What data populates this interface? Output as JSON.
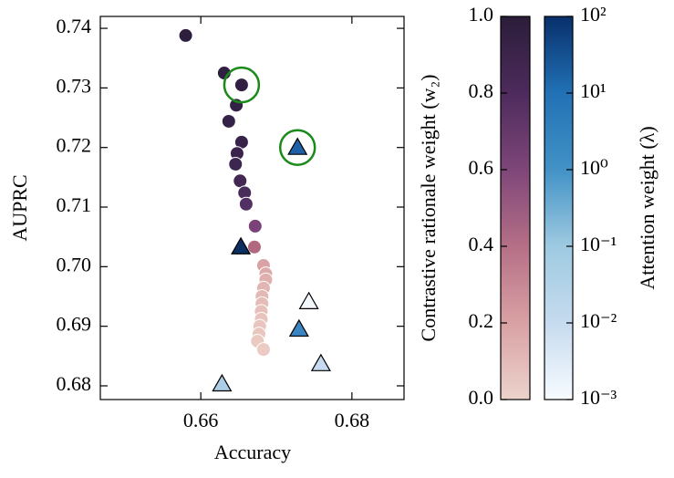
{
  "chart_data": {
    "type": "scatter",
    "xlabel": "Accuracy",
    "ylabel": "AUPRC",
    "xlim": [
      0.6467,
      0.6869
    ],
    "ylim": [
      0.6777,
      0.742
    ],
    "xticks": [
      0.66,
      0.68
    ],
    "yticks": [
      0.68,
      0.69,
      {
        "value": 0.7,
        "label": "0.70"
      },
      0.71,
      0.72,
      0.73,
      0.74
    ],
    "series": [
      {
        "marker": "circle",
        "x": [
          0.658,
          0.6631,
          0.6654,
          0.6647,
          0.6637,
          0.6654,
          0.6648,
          0.6646,
          0.6652,
          0.6658,
          0.666,
          0.6672,
          0.6671,
          0.6683,
          0.6686,
          0.6686,
          0.6683,
          0.6681,
          0.6681,
          0.668,
          0.668,
          0.6678,
          0.6677,
          0.6675,
          0.6683
        ],
        "values": [
          0.7388,
          0.7325,
          0.7305,
          0.7271,
          0.7244,
          0.7209,
          0.719,
          0.7172,
          0.7144,
          0.7124,
          0.7105,
          0.7068,
          0.7033,
          0.7002,
          0.6988,
          0.6978,
          0.6964,
          0.695,
          0.6938,
          0.6925,
          0.6912,
          0.69,
          0.6887,
          0.6875,
          0.6861
        ],
        "colors": [
          "#2d1e3e",
          "#2f1f41",
          "#311f43",
          "#332146",
          "#352248",
          "#37234a",
          "#3a244d",
          "#3d2650",
          "#422853",
          "#4a2c5b",
          "#533063",
          "#7a4278",
          "#b0697f",
          "#d9a3a5",
          "#dcaaaa",
          "#dfb0ae",
          "#e1b5b1",
          "#e3b9b4",
          "#e4bdb7",
          "#e6c0ba",
          "#e7c3bc",
          "#e8c5be",
          "#e9c7bf",
          "#eac9c1",
          "#ebcbc3"
        ]
      },
      {
        "marker": "triangle",
        "x": [
          0.6653,
          0.6728,
          0.673,
          0.6743,
          0.6759,
          0.6628
        ],
        "values": [
          0.7033,
          0.72,
          0.6895,
          0.6941,
          0.6837,
          0.6803
        ],
        "colors": [
          "#0c2f61",
          "#1f5fa8",
          "#3b85c2",
          "#f3f8fd",
          "#c6dbef",
          "#abcde6"
        ]
      }
    ],
    "highlights": {
      "x": [
        0.6654,
        0.6728
      ],
      "y": [
        0.7305,
        0.72
      ],
      "color": "#1a8a1a"
    },
    "colorbars": [
      {
        "label": "Contrastive rationale weight (w₂)",
        "scale": "linear",
        "lim": [
          0,
          1
        ],
        "ticks": [
          {
            "value": 0,
            "label": "0.0"
          },
          0.2,
          0.4,
          0.6,
          0.8,
          {
            "value": 1,
            "label": "1.0"
          }
        ],
        "colors": [
          "#ecd3cb",
          "#d9a1a4",
          "#b56f86",
          "#7e4679",
          "#4d2b5c",
          "#2b1d3a"
        ]
      },
      {
        "label": "Attention weight (λ)",
        "scale": "log",
        "lim": [
          0.001,
          100
        ],
        "ticks": [
          {
            "value": 0.001,
            "label": "10⁻³"
          },
          {
            "value": 0.01,
            "label": "10⁻²"
          },
          {
            "value": 0.1,
            "label": "10⁻¹"
          },
          {
            "value": 1,
            "label": "10⁰"
          },
          {
            "value": 10,
            "label": "10¹"
          },
          {
            "value": 100,
            "label": "10²"
          }
        ],
        "colors": [
          "#f7fbff",
          "#c6dbef",
          "#9ecae1",
          "#4292c6",
          "#2171b5",
          "#08306b"
        ]
      }
    ]
  }
}
